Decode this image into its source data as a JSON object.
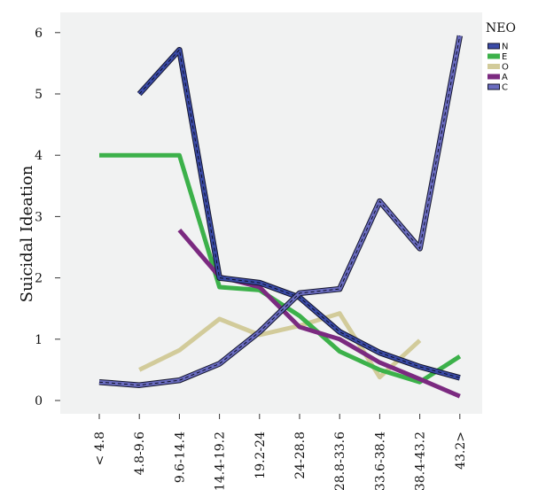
{
  "chart_data": {
    "type": "line",
    "title": "",
    "xlabel": "",
    "ylabel": "Suicidal Ideation",
    "ylim": [
      0,
      6.4
    ],
    "yticks": [
      0,
      1,
      2,
      3,
      4,
      5,
      6
    ],
    "grid": false,
    "legend_position": "right",
    "legend_title": "NEO",
    "categories": [
      "< 4.8",
      "4.8-9.6",
      "9.6-14.4",
      "14.4-19.2",
      "19.2-24",
      "24-28.8",
      "28.8-33.6",
      "33.6-38.4",
      "38.4-43.2",
      "43.2>"
    ],
    "series": [
      {
        "name": "N",
        "color": "#3a4aa6",
        "style": "dashed-outline",
        "values": [
          null,
          5.0,
          5.72,
          2.0,
          1.92,
          1.68,
          1.12,
          0.78,
          0.55,
          0.37
        ]
      },
      {
        "name": "E",
        "color": "#3cb14a",
        "style": "solid",
        "values": [
          4.0,
          4.0,
          4.0,
          1.85,
          1.8,
          1.38,
          0.8,
          0.5,
          0.3,
          0.72
        ]
      },
      {
        "name": "O",
        "color": "#d2cb9a",
        "style": "solid",
        "values": [
          null,
          0.5,
          0.82,
          1.33,
          1.07,
          1.22,
          1.42,
          0.38,
          0.98,
          null
        ]
      },
      {
        "name": "A",
        "color": "#7b2a80",
        "style": "solid",
        "values": [
          null,
          null,
          2.78,
          2.02,
          1.85,
          1.2,
          1.0,
          0.62,
          0.35,
          0.07
        ]
      },
      {
        "name": "C",
        "color": "#6a6cc0",
        "style": "dashed-outline",
        "values": [
          0.3,
          0.25,
          0.33,
          0.6,
          1.12,
          1.75,
          1.82,
          3.25,
          2.48,
          5.95
        ]
      }
    ]
  }
}
